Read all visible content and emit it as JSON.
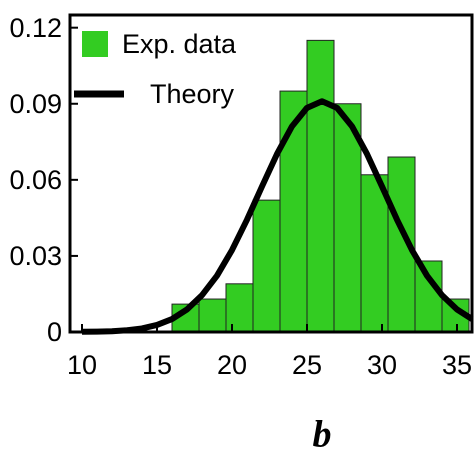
{
  "chart_data": {
    "type": "histogram",
    "xlabel": "b",
    "bins": [
      16,
      17.8,
      19.6,
      21.4,
      23.2,
      25,
      26.8,
      28.6,
      30.4,
      32.2,
      34,
      35.8
    ],
    "series": [
      {
        "name": "Exp. data",
        "color": "#33cc22",
        "values": [
          0.011,
          0.013,
          0.019,
          0.052,
          0.095,
          0.115,
          0.09,
          0.062,
          0.069,
          0.028,
          0.013
        ]
      },
      {
        "name": "Theory",
        "color": "#000000",
        "type": "line",
        "x": [
          10,
          11,
          12,
          13,
          14,
          15,
          16,
          17,
          18,
          19,
          20,
          21,
          22,
          23,
          24,
          25,
          26,
          27,
          28,
          29,
          30,
          31,
          32,
          33,
          34,
          35,
          36
        ],
        "values": [
          0.0001,
          0.00014,
          0.0003,
          0.0007,
          0.0014,
          0.0028,
          0.0051,
          0.0089,
          0.0145,
          0.0222,
          0.0323,
          0.0443,
          0.0574,
          0.0702,
          0.0811,
          0.0884,
          0.091,
          0.0884,
          0.0811,
          0.0702,
          0.0574,
          0.0443,
          0.0323,
          0.0222,
          0.0145,
          0.0089,
          0.0051
        ]
      }
    ],
    "xlim": [
      9.2,
      36
    ],
    "ylim": [
      0,
      0.125
    ],
    "xticks": [
      10,
      15,
      20,
      25,
      30,
      35
    ],
    "yticks": [
      0,
      0.03,
      0.06,
      0.09,
      0.12
    ],
    "legend": "upper left"
  }
}
